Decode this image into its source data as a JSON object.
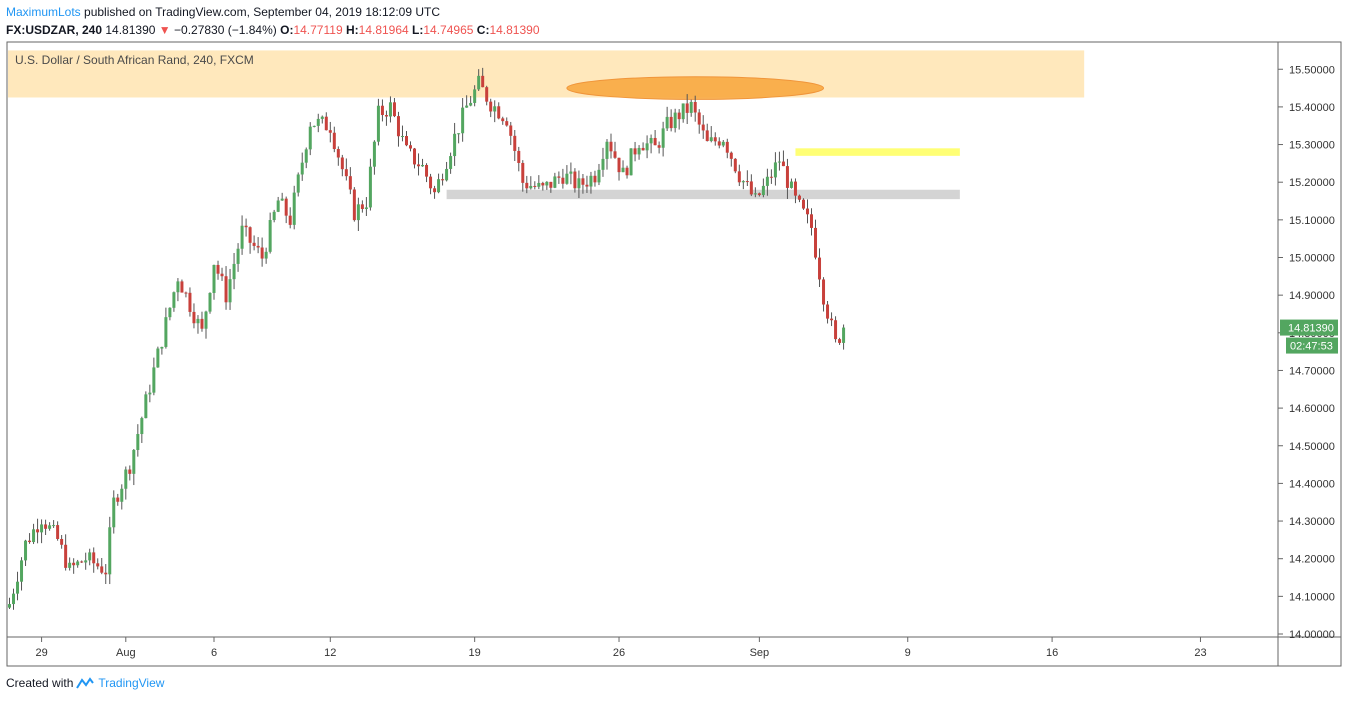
{
  "header": {
    "author": "MaximumLots",
    "published_text": " published on TradingView.com, September 04, 2019 18:12:09 UTC",
    "symbol": "FX:USDZAR, 240",
    "last": "14.81390",
    "change": "−0.27830 (−1.84%)",
    "open_label": "O:",
    "open": "14.77119",
    "high_label": "H:",
    "high": "14.81964",
    "low_label": "L:",
    "low": "14.74965",
    "close_label": "C:",
    "close": "14.81390"
  },
  "footer": {
    "created_with": "Created with",
    "brand": "TradingView"
  },
  "colors": {
    "up": "#53a660",
    "down": "#c8403b",
    "accent": "#2196f3",
    "price_tag": "#53a660"
  },
  "chart_data": {
    "type": "candlestick",
    "title": "U.S. Dollar / South African Rand, 240, FXCM",
    "ylim": [
      14.0,
      15.55
    ],
    "y_ticks": [
      "15.50000",
      "15.40000",
      "15.30000",
      "15.20000",
      "15.10000",
      "15.00000",
      "14.90000",
      "14.80000",
      "14.70000",
      "14.60000",
      "14.50000",
      "14.40000",
      "14.30000",
      "14.20000",
      "14.10000",
      "14.00000"
    ],
    "x_ticks": [
      "29",
      "Aug",
      "6",
      "12",
      "19",
      "26",
      "Sep",
      "9",
      "16",
      "23"
    ],
    "last_price_label": "14.81390",
    "countdown_label": "02:47:53",
    "last_price": 14.8139,
    "anchors": [
      {
        "i": 0,
        "p": 14.08
      },
      {
        "i": 4,
        "p": 14.24
      },
      {
        "i": 8,
        "p": 14.31
      },
      {
        "i": 12,
        "p": 14.25
      },
      {
        "i": 15,
        "p": 14.17
      },
      {
        "i": 19,
        "p": 14.2
      },
      {
        "i": 24,
        "p": 14.17
      },
      {
        "i": 26,
        "p": 14.35
      },
      {
        "i": 30,
        "p": 14.45
      },
      {
        "i": 36,
        "p": 14.7
      },
      {
        "i": 42,
        "p": 14.95
      },
      {
        "i": 48,
        "p": 14.8
      },
      {
        "i": 51,
        "p": 14.99
      },
      {
        "i": 54,
        "p": 14.9
      },
      {
        "i": 58,
        "p": 15.07
      },
      {
        "i": 63,
        "p": 15.0
      },
      {
        "i": 67,
        "p": 15.15
      },
      {
        "i": 70,
        "p": 15.1
      },
      {
        "i": 75,
        "p": 15.36
      },
      {
        "i": 80,
        "p": 15.35
      },
      {
        "i": 86,
        "p": 15.12
      },
      {
        "i": 89,
        "p": 15.15
      },
      {
        "i": 92,
        "p": 15.38
      },
      {
        "i": 95,
        "p": 15.4
      },
      {
        "i": 99,
        "p": 15.28
      },
      {
        "i": 103,
        "p": 15.24
      },
      {
        "i": 106,
        "p": 15.17
      },
      {
        "i": 111,
        "p": 15.32
      },
      {
        "i": 114,
        "p": 15.4
      },
      {
        "i": 117,
        "p": 15.46
      },
      {
        "i": 120,
        "p": 15.41
      },
      {
        "i": 124,
        "p": 15.37
      },
      {
        "i": 128,
        "p": 15.2
      },
      {
        "i": 133,
        "p": 15.18
      },
      {
        "i": 138,
        "p": 15.22
      },
      {
        "i": 142,
        "p": 15.19
      },
      {
        "i": 146,
        "p": 15.22
      },
      {
        "i": 149,
        "p": 15.32
      },
      {
        "i": 153,
        "p": 15.22
      },
      {
        "i": 157,
        "p": 15.31
      },
      {
        "i": 161,
        "p": 15.29
      },
      {
        "i": 164,
        "p": 15.35
      },
      {
        "i": 167,
        "p": 15.38
      },
      {
        "i": 170,
        "p": 15.4
      },
      {
        "i": 174,
        "p": 15.3
      },
      {
        "i": 178,
        "p": 15.32
      },
      {
        "i": 182,
        "p": 15.22
      },
      {
        "i": 186,
        "p": 15.15
      },
      {
        "i": 189,
        "p": 15.2
      },
      {
        "i": 192,
        "p": 15.26
      },
      {
        "i": 196,
        "p": 15.15
      },
      {
        "i": 200,
        "p": 15.08
      },
      {
        "i": 203,
        "p": 14.9
      },
      {
        "i": 206,
        "p": 14.77
      },
      {
        "i": 208,
        "p": 14.8139
      }
    ],
    "zones": [
      {
        "type": "resistance-band",
        "from": 15.425,
        "to": 15.55,
        "start_index": -2,
        "end_index": 268,
        "color": "#ffe4b0"
      },
      {
        "type": "grey-support",
        "from": 15.155,
        "to": 15.18,
        "start_index": 109,
        "end_index": 237,
        "color": "#cfcfcf"
      },
      {
        "type": "yellow-level",
        "from": 15.27,
        "to": 15.29,
        "start_index": 196,
        "end_index": 237,
        "color": "#ffff66"
      },
      {
        "type": "orange-ellipse",
        "center_index": 171,
        "center_price": 15.45,
        "radius_index": 32,
        "radius_price": 0.03,
        "color": "#f8a43a"
      }
    ]
  }
}
